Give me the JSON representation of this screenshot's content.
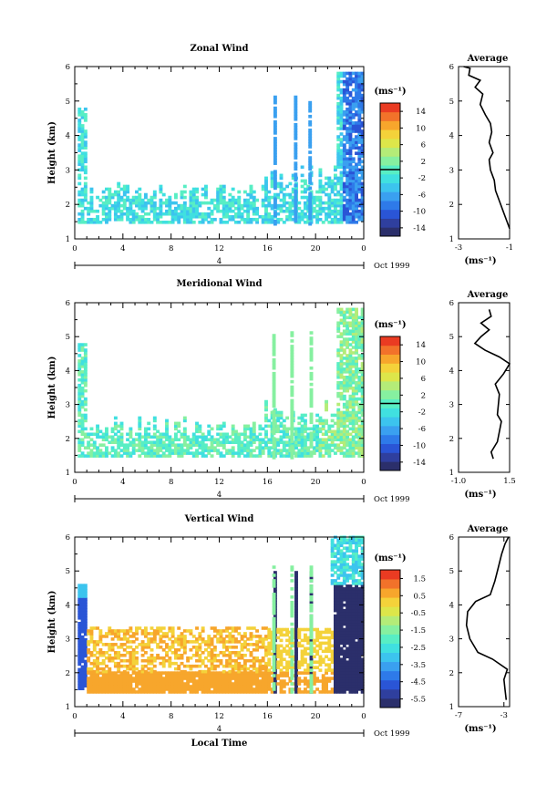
{
  "colors": {
    "scale": [
      "#2b2f6b",
      "#2f3f9e",
      "#2a55d6",
      "#2e7ae9",
      "#3aa0f0",
      "#3cc4ee",
      "#40e0e0",
      "#58eec4",
      "#86f0a0",
      "#b4ec78",
      "#dde64a",
      "#f4d23a",
      "#f7a62c",
      "#f2722a",
      "#ea3b22"
    ],
    "line": "#000000",
    "background": "#ffffff"
  },
  "chart_data": [
    {
      "type": "heatmap",
      "title": "Zonal Wind",
      "ylabel": "Height (km)",
      "xlim": [
        0,
        24
      ],
      "ylim": [
        1,
        6
      ],
      "x_ticks": [
        "0",
        "4",
        "8",
        "12",
        "16",
        "20",
        "0"
      ],
      "y_ticks": [
        "1",
        "2",
        "3",
        "4",
        "5",
        "6"
      ],
      "date_label": "4",
      "month_label": "Oct 1999",
      "colorbar": {
        "unit": "(ms⁻¹)",
        "ticks": [
          "14",
          "10",
          "6",
          "2",
          "-2",
          "-6",
          "-10",
          "-14"
        ],
        "range": [
          -16,
          16
        ],
        "zero_line": true
      },
      "profile": {
        "title": "Average",
        "xlabel": "(ms⁻¹)",
        "x_ticks": [
          "-3",
          "-1"
        ],
        "xlim": [
          -3,
          -1
        ],
        "ylim": [
          1,
          6
        ],
        "points": [
          [
            -1.0,
            1.3
          ],
          [
            -1.1,
            1.5
          ],
          [
            -1.25,
            1.8
          ],
          [
            -1.4,
            2.1
          ],
          [
            -1.55,
            2.4
          ],
          [
            -1.6,
            2.7
          ],
          [
            -1.75,
            3.0
          ],
          [
            -1.8,
            3.3
          ],
          [
            -1.65,
            3.5
          ],
          [
            -1.8,
            3.8
          ],
          [
            -1.7,
            4.1
          ],
          [
            -1.75,
            4.35
          ],
          [
            -1.95,
            4.6
          ],
          [
            -2.15,
            4.9
          ],
          [
            -2.05,
            5.2
          ],
          [
            -2.35,
            5.4
          ],
          [
            -2.15,
            5.6
          ],
          [
            -2.6,
            5.75
          ],
          [
            -2.55,
            5.95
          ],
          [
            -2.8,
            6.0
          ]
        ]
      }
    },
    {
      "type": "heatmap",
      "title": "Meridional Wind",
      "ylabel": "Height (km)",
      "xlim": [
        0,
        24
      ],
      "ylim": [
        1,
        6
      ],
      "x_ticks": [
        "0",
        "4",
        "8",
        "12",
        "16",
        "20",
        "0"
      ],
      "y_ticks": [
        "1",
        "2",
        "3",
        "4",
        "5",
        "6"
      ],
      "date_label": "4",
      "month_label": "Oct 1999",
      "colorbar": {
        "unit": "(ms⁻¹)",
        "ticks": [
          "14",
          "10",
          "6",
          "2",
          "-2",
          "-6",
          "-10",
          "-14"
        ],
        "range": [
          -16,
          16
        ],
        "zero_line": true
      },
      "profile": {
        "title": "Average",
        "xlabel": "(ms⁻¹)",
        "x_ticks": [
          "-1.0",
          "1.5"
        ],
        "xlim": [
          -1.0,
          1.5
        ],
        "ylim": [
          1,
          6
        ],
        "points": [
          [
            0.7,
            1.4
          ],
          [
            0.6,
            1.6
          ],
          [
            0.9,
            1.9
          ],
          [
            1.0,
            2.2
          ],
          [
            1.1,
            2.5
          ],
          [
            0.9,
            2.7
          ],
          [
            0.95,
            3.0
          ],
          [
            1.0,
            3.3
          ],
          [
            0.8,
            3.6
          ],
          [
            1.2,
            3.9
          ],
          [
            1.5,
            4.2
          ],
          [
            1.0,
            4.4
          ],
          [
            0.3,
            4.6
          ],
          [
            -0.2,
            4.8
          ],
          [
            0.1,
            5.0
          ],
          [
            0.5,
            5.2
          ],
          [
            0.1,
            5.4
          ],
          [
            0.6,
            5.6
          ],
          [
            0.5,
            5.8
          ]
        ]
      }
    },
    {
      "type": "heatmap",
      "title": "Vertical Wind",
      "ylabel": "Height (km)",
      "xlabel": "Local Time",
      "xlim": [
        0,
        24
      ],
      "ylim": [
        1,
        6
      ],
      "x_ticks": [
        "0",
        "4",
        "8",
        "12",
        "16",
        "20",
        "0"
      ],
      "y_ticks": [
        "1",
        "2",
        "3",
        "4",
        "5",
        "6"
      ],
      "date_label": "4",
      "month_label": "Oct 1999",
      "colorbar": {
        "unit": "(ms⁻¹)",
        "ticks": [
          "1.5",
          "0.5",
          "-0.5",
          "-1.5",
          "-2.5",
          "-3.5",
          "-4.5",
          "-5.5"
        ],
        "range": [
          -6.0,
          2.0
        ],
        "zero_line": false
      },
      "profile": {
        "title": "Average",
        "xlabel": "(ms⁻¹)",
        "x_ticks": [
          "-7",
          "-3"
        ],
        "xlim": [
          -7,
          -2.5
        ],
        "ylim": [
          1,
          6
        ],
        "points": [
          [
            -2.8,
            1.2
          ],
          [
            -2.9,
            1.5
          ],
          [
            -3.0,
            1.8
          ],
          [
            -2.7,
            2.1
          ],
          [
            -4.0,
            2.4
          ],
          [
            -5.3,
            2.6
          ],
          [
            -6.0,
            3.0
          ],
          [
            -6.3,
            3.4
          ],
          [
            -6.2,
            3.8
          ],
          [
            -5.5,
            4.1
          ],
          [
            -4.2,
            4.3
          ],
          [
            -3.8,
            4.7
          ],
          [
            -3.5,
            5.1
          ],
          [
            -3.2,
            5.5
          ],
          [
            -2.9,
            5.8
          ],
          [
            -2.6,
            6.0
          ]
        ]
      }
    }
  ]
}
